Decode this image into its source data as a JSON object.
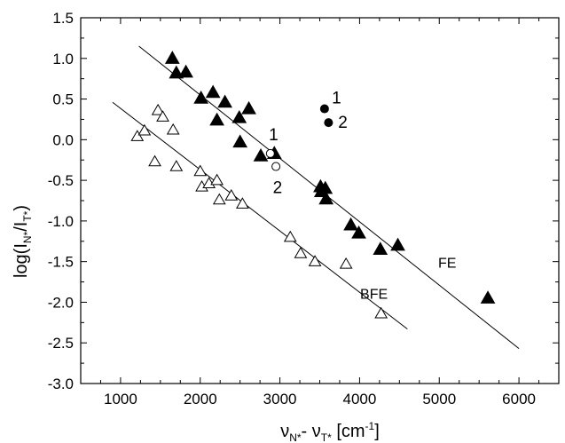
{
  "chart_data": {
    "type": "scatter",
    "title": "",
    "xlabel": "νN*- νT*  [cm⁻¹]",
    "ylabel": "log(IN*/IT*)",
    "xlim": [
      500,
      6500
    ],
    "ylim": [
      -3.0,
      1.5
    ],
    "x_ticks": [
      1000,
      2000,
      3000,
      4000,
      5000,
      6000
    ],
    "x_tick_labels": [
      "1000",
      "2000",
      "3000",
      "4000",
      "5000",
      "6000"
    ],
    "y_ticks": [
      1.5,
      1.0,
      0.5,
      0.0,
      -0.5,
      -1.0,
      -1.5,
      -2.0,
      -2.5,
      -3.0
    ],
    "y_tick_labels": [
      "1.5",
      "1.0",
      "0.5",
      "0.0",
      "-0.5",
      "-1.0",
      "-1.5",
      "-2.0",
      "-2.5",
      "-3.0"
    ],
    "grid": false,
    "series": [
      {
        "marker": "filled-triangle",
        "points": [
          [
            1650,
            1.0
          ],
          [
            1700,
            0.82
          ],
          [
            1820,
            0.83
          ],
          [
            2010,
            0.51
          ],
          [
            2160,
            0.58
          ],
          [
            2210,
            0.24
          ],
          [
            2310,
            0.46
          ],
          [
            2490,
            0.27
          ],
          [
            2500,
            -0.03
          ],
          [
            2610,
            0.38
          ],
          [
            2760,
            -0.2
          ],
          [
            2930,
            -0.17
          ],
          [
            3510,
            -0.58
          ],
          [
            3520,
            -0.64
          ],
          [
            3570,
            -0.6
          ],
          [
            3580,
            -0.73
          ],
          [
            3890,
            -1.05
          ],
          [
            3990,
            -1.15
          ],
          [
            4260,
            -1.35
          ],
          [
            4480,
            -1.3
          ],
          [
            5610,
            -1.95
          ]
        ]
      },
      {
        "marker": "open-triangle",
        "points": [
          [
            1210,
            0.04
          ],
          [
            1300,
            0.11
          ],
          [
            1430,
            -0.27
          ],
          [
            1470,
            0.36
          ],
          [
            1530,
            0.28
          ],
          [
            1660,
            0.12
          ],
          [
            1700,
            -0.33
          ],
          [
            2000,
            -0.39
          ],
          [
            2020,
            -0.58
          ],
          [
            2110,
            -0.54
          ],
          [
            2210,
            -0.5
          ],
          [
            2240,
            -0.74
          ],
          [
            2390,
            -0.69
          ],
          [
            2530,
            -0.79
          ],
          [
            3130,
            -1.2
          ],
          [
            3260,
            -1.4
          ],
          [
            3440,
            -1.5
          ],
          [
            3830,
            -1.53
          ],
          [
            4270,
            -2.14
          ]
        ]
      },
      {
        "marker": "filled-circle",
        "points": [
          [
            3560,
            0.38
          ],
          [
            3610,
            0.21
          ]
        ]
      },
      {
        "marker": "open-circle",
        "points": [
          [
            2880,
            -0.17
          ],
          [
            2950,
            -0.33
          ]
        ]
      }
    ],
    "fit_lines": [
      {
        "label": "FE",
        "from": [
          1230,
          1.15
        ],
        "to": [
          6000,
          -2.57
        ]
      },
      {
        "label": "BFE",
        "from": [
          900,
          0.46
        ],
        "to": [
          4600,
          -2.33
        ]
      }
    ],
    "annotations": [
      {
        "text": "1",
        "x": 3710,
        "y": 0.52
      },
      {
        "text": "2",
        "x": 3790,
        "y": 0.22
      },
      {
        "text": "1",
        "x": 2920,
        "y": 0.07
      },
      {
        "text": "2",
        "x": 2970,
        "y": -0.58
      },
      {
        "text": "FE",
        "x": 5100,
        "y": -1.5
      },
      {
        "text": "BFE",
        "x": 4180,
        "y": -1.88
      }
    ]
  }
}
